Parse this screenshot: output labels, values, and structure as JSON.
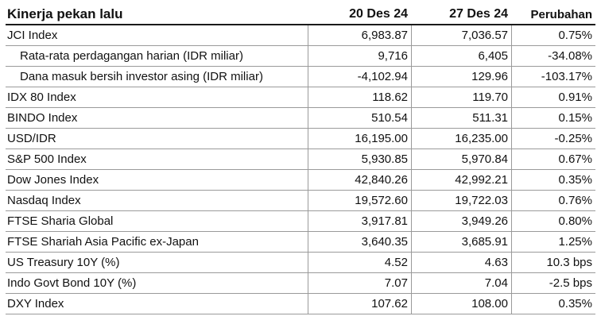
{
  "table": {
    "title": "Kinerja pekan lalu",
    "col_date1": "20 Des 24",
    "col_date2": "27 Des 24",
    "col_change": "Perubahan",
    "rows": [
      {
        "label": "JCI Index",
        "v1": "6,983.87",
        "v2": "7,036.57",
        "chg": "0.75%"
      },
      {
        "label": "Rata-rata perdagangan harian (IDR miliar)",
        "v1": "9,716",
        "v2": "6,405",
        "chg": "-34.08%"
      },
      {
        "label": "Dana masuk bersih investor asing (IDR miliar)",
        "v1": "-4,102.94",
        "v2": "129.96",
        "chg": "-103.17%"
      },
      {
        "label": "IDX 80 Index",
        "v1": "118.62",
        "v2": "119.70",
        "chg": "0.91%"
      },
      {
        "label": "BINDO Index",
        "v1": "510.54",
        "v2": "511.31",
        "chg": "0.15%"
      },
      {
        "label": "USD/IDR",
        "v1": "16,195.00",
        "v2": "16,235.00",
        "chg": "-0.25%"
      },
      {
        "label": "S&P 500 Index",
        "v1": "5,930.85",
        "v2": "5,970.84",
        "chg": "0.67%"
      },
      {
        "label": "Dow Jones Index",
        "v1": "42,840.26",
        "v2": "42,992.21",
        "chg": "0.35%"
      },
      {
        "label": "Nasdaq Index",
        "v1": "19,572.60",
        "v2": "19,722.03",
        "chg": "0.76%"
      },
      {
        "label": "FTSE Sharia Global",
        "v1": "3,917.81",
        "v2": "3,949.26",
        "chg": "0.80%"
      },
      {
        "label": "FTSE Shariah Asia Pacific ex-Japan",
        "v1": "3,640.35",
        "v2": "3,685.91",
        "chg": "1.25%"
      },
      {
        "label": "US Treasury 10Y (%)",
        "v1": "4.52",
        "v2": "4.63",
        "chg": "10.3 bps"
      },
      {
        "label": "Indo Govt Bond 10Y (%)",
        "v1": "7.07",
        "v2": "7.04",
        "chg": "-2.5 bps"
      },
      {
        "label": "DXY Index",
        "v1": "107.62",
        "v2": "108.00",
        "chg": "0.35%"
      }
    ]
  }
}
